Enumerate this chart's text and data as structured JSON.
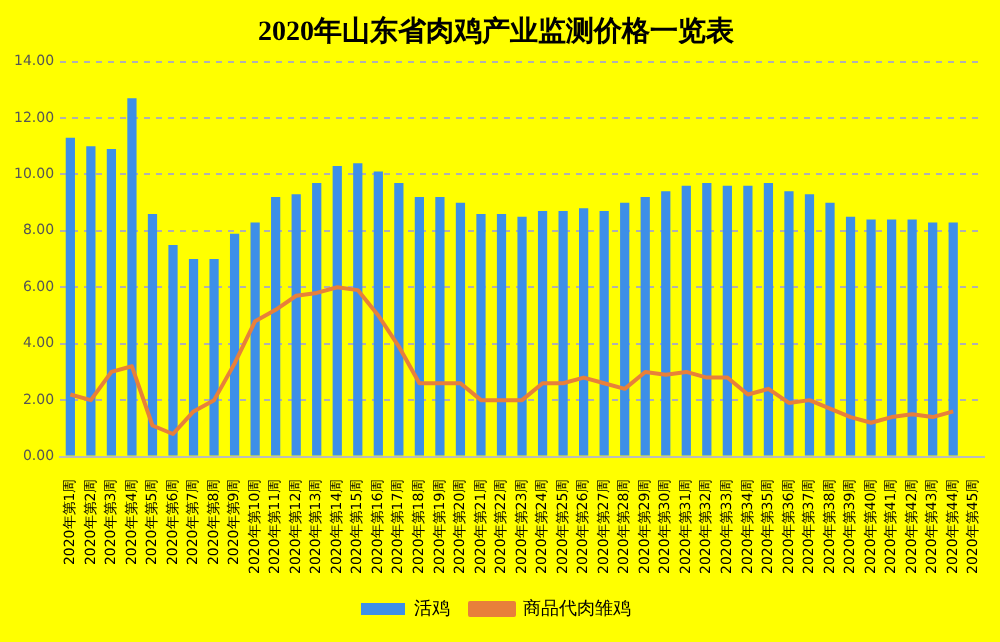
{
  "chart_data": {
    "type": "bar",
    "title": "2020年山东省肉鸡产业监测价格一览表",
    "categories": [
      "2020年第1周",
      "2020年第2周",
      "2020年第3周",
      "2020年第4周",
      "2020年第5周",
      "2020年第6周",
      "2020年第7周",
      "2020年第8周",
      "2020年第9周",
      "2020年第10周",
      "2020年第11周",
      "2020年第12周",
      "2020年第13周",
      "2020年第14周",
      "2020年第15周",
      "2020年第16周",
      "2020年第17周",
      "2020年第18周",
      "2020年第19周",
      "2020年第20周",
      "2020年第21周",
      "2020年第22周",
      "2020年第23周",
      "2020年第24周",
      "2020年第25周",
      "2020年第26周",
      "2020年第27周",
      "2020年第28周",
      "2020年第29周",
      "2020年第30周",
      "2020年第31周",
      "2020年第32周",
      "2020年第33周",
      "2020年第34周",
      "2020年第35周",
      "2020年第36周",
      "2020年第37周",
      "2020年第38周",
      "2020年第39周",
      "2020年第40周",
      "2020年第41周",
      "2020年第42周",
      "2020年第43周",
      "2020年第44周",
      "2020年第45周"
    ],
    "series": [
      {
        "name": "活鸡",
        "color": "#3d8fe8",
        "values": [
          11.3,
          11.0,
          10.9,
          12.7,
          8.6,
          7.5,
          7.0,
          7.0,
          7.9,
          8.3,
          9.2,
          9.3,
          9.7,
          10.3,
          10.4,
          10.1,
          9.7,
          9.2,
          9.2,
          9.0,
          8.6,
          8.6,
          8.5,
          8.7,
          8.7,
          8.8,
          8.7,
          9.0,
          9.2,
          9.4,
          9.6,
          9.7,
          9.6,
          9.6,
          9.7,
          9.4,
          9.3,
          9.0,
          8.5,
          8.4,
          8.4,
          8.4,
          8.3,
          8.3,
          null
        ]
      },
      {
        "name": "商品代肉雏鸡",
        "type": "line",
        "color": "#e8803a",
        "values": [
          2.2,
          2.0,
          3.0,
          3.2,
          1.1,
          0.8,
          1.6,
          2.0,
          3.3,
          4.8,
          5.2,
          5.7,
          5.8,
          6.0,
          5.9,
          5.0,
          3.9,
          2.6,
          2.6,
          2.6,
          2.0,
          2.0,
          2.0,
          2.6,
          2.6,
          2.8,
          2.6,
          2.4,
          3.0,
          2.9,
          3.0,
          2.8,
          2.8,
          2.2,
          2.4,
          1.9,
          2.0,
          1.7,
          1.4,
          1.2,
          1.4,
          1.5,
          1.4,
          1.6,
          null
        ]
      }
    ],
    "ylim": [
      0,
      14
    ],
    "yticks": [
      {
        "value": 0,
        "label": "0.00"
      },
      {
        "value": 2,
        "label": "2.00"
      },
      {
        "value": 4,
        "label": "4.00"
      },
      {
        "value": 6,
        "label": "6.00"
      },
      {
        "value": 8,
        "label": "8.00"
      },
      {
        "value": 10,
        "label": "10.00"
      },
      {
        "value": 12,
        "label": "12.00"
      },
      {
        "value": 14,
        "label": "14.00"
      }
    ],
    "grid": "y",
    "legend": "bottom",
    "marker": "none",
    "line_style": "solid"
  }
}
